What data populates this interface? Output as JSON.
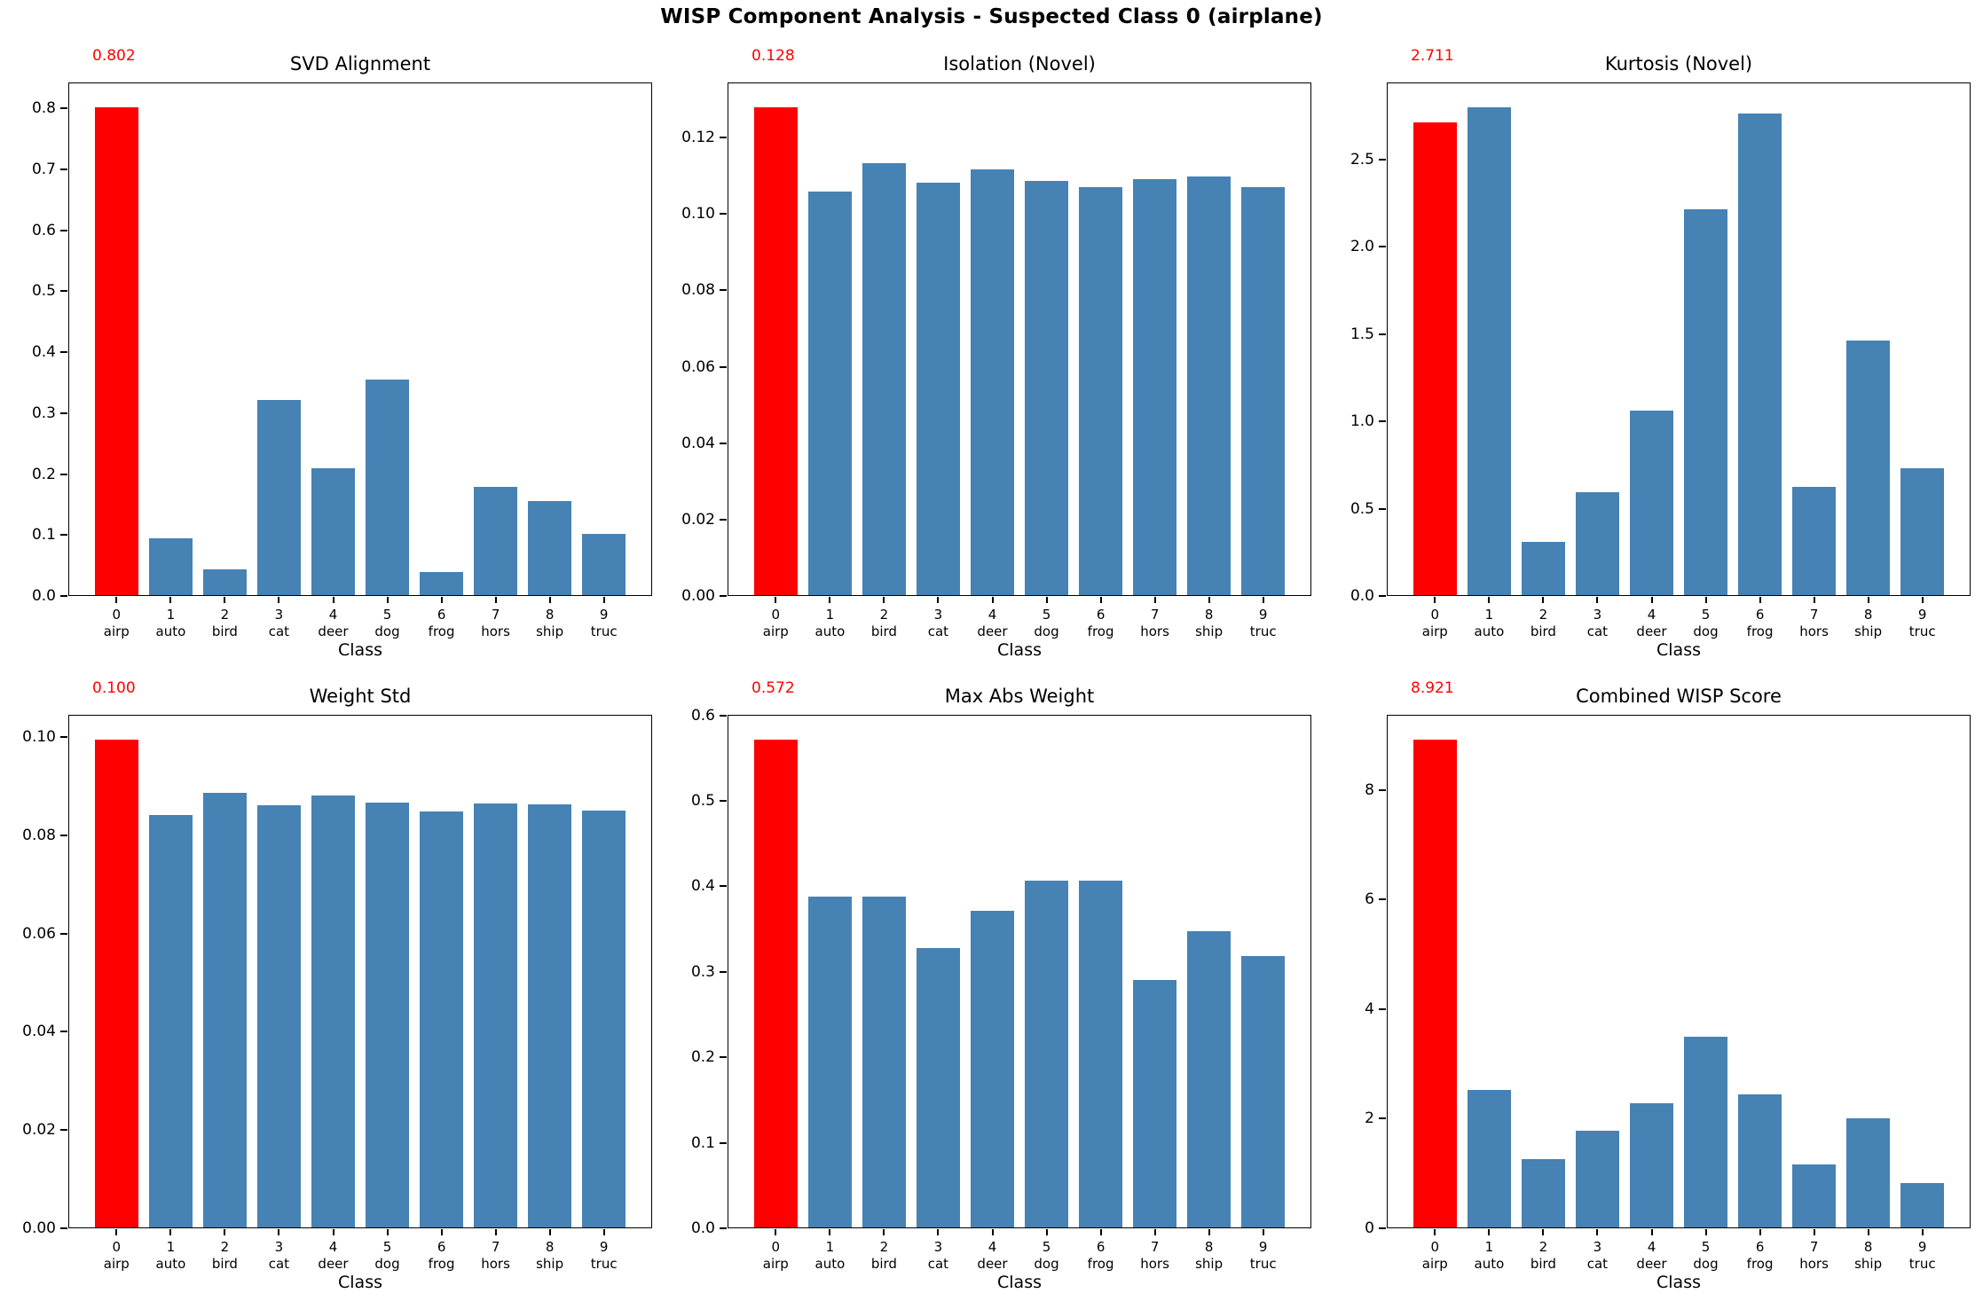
{
  "suptitle": "WISP Component Analysis - Suspected Class 0 (airplane)",
  "colors": {
    "bar": "#4682b4",
    "highlight": "#ff0000",
    "annotation_text": "#ff0000",
    "text": "#000000",
    "background": "#ffffff"
  },
  "chart_data": [
    {
      "type": "bar",
      "id": "svd-alignment",
      "title": "SVD Alignment",
      "annotation": "0.802",
      "xlabel": "Class",
      "categories": [
        "0",
        "1",
        "2",
        "3",
        "4",
        "5",
        "6",
        "7",
        "8",
        "9"
      ],
      "category_names": [
        "airp",
        "auto",
        "bird",
        "cat",
        "deer",
        "dog",
        "frog",
        "hors",
        "ship",
        "truc"
      ],
      "values": [
        0.802,
        0.095,
        0.044,
        0.322,
        0.21,
        0.355,
        0.04,
        0.179,
        0.155,
        0.102
      ],
      "ylim": [
        0,
        0.8421
      ],
      "yticks": [
        0.0,
        0.1,
        0.2,
        0.3,
        0.4,
        0.5,
        0.6,
        0.7,
        0.8
      ],
      "ytick_labels": [
        "0.0",
        "0.1",
        "0.2",
        "0.3",
        "0.4",
        "0.5",
        "0.6",
        "0.7",
        "0.8"
      ],
      "highlight_index": 0,
      "grid": false,
      "legend": null
    },
    {
      "type": "bar",
      "id": "isolation-novel",
      "title": "Isolation (Novel)",
      "annotation": "0.128",
      "xlabel": "Class",
      "categories": [
        "0",
        "1",
        "2",
        "3",
        "4",
        "5",
        "6",
        "7",
        "8",
        "9"
      ],
      "category_names": [
        "airp",
        "auto",
        "bird",
        "cat",
        "deer",
        "dog",
        "frog",
        "hors",
        "ship",
        "truc"
      ],
      "values": [
        0.128,
        0.1058,
        0.1133,
        0.1082,
        0.1117,
        0.1086,
        0.1071,
        0.1092,
        0.1098,
        0.1071
      ],
      "ylim": [
        0,
        0.1344
      ],
      "yticks": [
        0.0,
        0.02,
        0.04,
        0.06,
        0.08,
        0.1,
        0.12
      ],
      "ytick_labels": [
        "0.00",
        "0.02",
        "0.04",
        "0.06",
        "0.08",
        "0.10",
        "0.12"
      ],
      "highlight_index": 0,
      "grid": false,
      "legend": null
    },
    {
      "type": "bar",
      "id": "kurtosis-novel",
      "title": "Kurtosis (Novel)",
      "annotation": "2.711",
      "xlabel": "Class",
      "categories": [
        "0",
        "1",
        "2",
        "3",
        "4",
        "5",
        "6",
        "7",
        "8",
        "9"
      ],
      "category_names": [
        "airp",
        "auto",
        "bird",
        "cat",
        "deer",
        "dog",
        "frog",
        "hors",
        "ship",
        "truc"
      ],
      "values": [
        2.711,
        2.801,
        0.31,
        0.597,
        1.063,
        2.213,
        2.763,
        0.624,
        1.462,
        0.734
      ],
      "ylim": [
        0,
        2.9412
      ],
      "yticks": [
        0.0,
        0.5,
        1.0,
        1.5,
        2.0,
        2.5
      ],
      "ytick_labels": [
        "0.0",
        "0.5",
        "1.0",
        "1.5",
        "2.0",
        "2.5"
      ],
      "highlight_index": 0,
      "grid": false,
      "legend": null
    },
    {
      "type": "bar",
      "id": "weight-std",
      "title": "Weight Std",
      "annotation": "0.100",
      "xlabel": "Class",
      "categories": [
        "0",
        "1",
        "2",
        "3",
        "4",
        "5",
        "6",
        "7",
        "8",
        "9"
      ],
      "category_names": [
        "airp",
        "auto",
        "bird",
        "cat",
        "deer",
        "dog",
        "frog",
        "hors",
        "ship",
        "truc"
      ],
      "values": [
        0.0995,
        0.0841,
        0.0887,
        0.0861,
        0.0881,
        0.0866,
        0.0848,
        0.0864,
        0.0863,
        0.085
      ],
      "ylim": [
        0,
        0.1045
      ],
      "yticks": [
        0.0,
        0.02,
        0.04,
        0.06,
        0.08,
        0.1
      ],
      "ytick_labels": [
        "0.00",
        "0.02",
        "0.04",
        "0.06",
        "0.08",
        "0.10"
      ],
      "highlight_index": 0,
      "grid": false,
      "legend": null
    },
    {
      "type": "bar",
      "id": "max-abs-weight",
      "title": "Max Abs Weight",
      "annotation": "0.572",
      "xlabel": "Class",
      "categories": [
        "0",
        "1",
        "2",
        "3",
        "4",
        "5",
        "6",
        "7",
        "8",
        "9"
      ],
      "category_names": [
        "airp",
        "auto",
        "bird",
        "cat",
        "deer",
        "dog",
        "frog",
        "hors",
        "ship",
        "truc"
      ],
      "values": [
        0.572,
        0.388,
        0.388,
        0.328,
        0.371,
        0.407,
        0.407,
        0.291,
        0.348,
        0.318
      ],
      "ylim": [
        0,
        0.6006
      ],
      "yticks": [
        0.0,
        0.1,
        0.2,
        0.3,
        0.4,
        0.5,
        0.6
      ],
      "ytick_labels": [
        "0.0",
        "0.1",
        "0.2",
        "0.3",
        "0.4",
        "0.5",
        "0.6"
      ],
      "highlight_index": 0,
      "grid": false,
      "legend": null
    },
    {
      "type": "bar",
      "id": "combined-wisp-score",
      "title": "Combined WISP Score",
      "annotation": "8.921",
      "xlabel": "Class",
      "categories": [
        "0",
        "1",
        "2",
        "3",
        "4",
        "5",
        "6",
        "7",
        "8",
        "9"
      ],
      "category_names": [
        "airp",
        "auto",
        "bird",
        "cat",
        "deer",
        "dog",
        "frog",
        "hors",
        "ship",
        "truc"
      ],
      "values": [
        8.921,
        2.53,
        1.27,
        1.78,
        2.28,
        3.5,
        2.45,
        1.17,
        2.01,
        0.82
      ],
      "ylim": [
        0,
        9.3671
      ],
      "yticks": [
        0,
        2,
        4,
        6,
        8
      ],
      "ytick_labels": [
        "0",
        "2",
        "4",
        "6",
        "8"
      ],
      "highlight_index": 0,
      "grid": false,
      "legend": null
    }
  ]
}
